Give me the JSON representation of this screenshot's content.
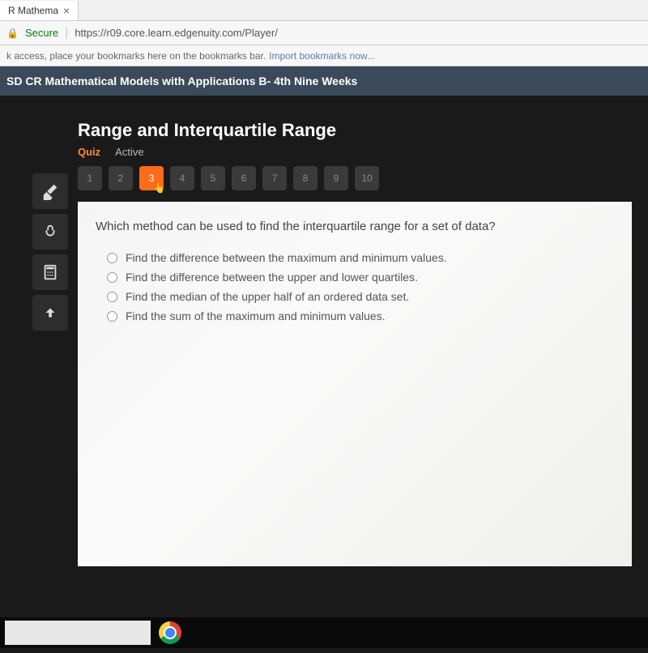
{
  "tab": {
    "title": "R Mathema"
  },
  "address": {
    "secure": "Secure",
    "url": "https://r09.core.learn.edgenuity.com/Player/"
  },
  "bookmarks": {
    "text": "k access, place your bookmarks here on the bookmarks bar.",
    "link": "Import bookmarks now..."
  },
  "course": {
    "title": "SD CR Mathematical Models with Applications B- 4th Nine Weeks"
  },
  "lesson": {
    "title": "Range and Interquartile Range",
    "quiz": "Quiz",
    "active": "Active"
  },
  "nav": {
    "items": [
      "1",
      "2",
      "3",
      "4",
      "5",
      "6",
      "7",
      "8",
      "9",
      "10"
    ],
    "active_index": 2
  },
  "question": {
    "text": "Which method can be used to find the interquartile range for a set of data?",
    "options": [
      "Find the difference between the maximum and minimum values.",
      "Find the difference between the upper and lower quartiles.",
      "Find the median of the upper half of an ordered data set.",
      "Find the sum of the maximum and minimum values."
    ]
  }
}
